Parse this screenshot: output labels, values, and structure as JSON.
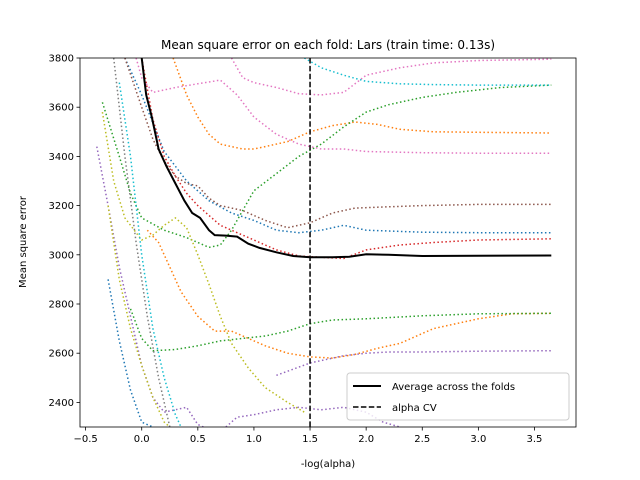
{
  "chart_data": {
    "type": "line",
    "title": "Mean square error on each fold: Lars (train time: 0.13s)",
    "xlabel": "-log(alpha)",
    "ylabel": "Mean square error",
    "xlim": [
      -0.55,
      3.87
    ],
    "ylim": [
      2300,
      3800
    ],
    "xticks": [
      -0.5,
      0.0,
      0.5,
      1.0,
      1.5,
      2.0,
      2.5,
      3.0,
      3.5
    ],
    "xtick_labels": [
      "−0.5",
      "0.0",
      "0.5",
      "1.0",
      "1.5",
      "2.0",
      "2.5",
      "3.0",
      "3.5"
    ],
    "yticks": [
      2400,
      2600,
      2800,
      3000,
      3200,
      3400,
      3600,
      3800
    ],
    "ytick_labels": [
      "2400",
      "2600",
      "2800",
      "3000",
      "3200",
      "3400",
      "3600",
      "3800"
    ],
    "grid": false,
    "legend": {
      "position": "lower-right",
      "entries": [
        {
          "label": "Average across the folds",
          "style": "solid",
          "color": "#000000"
        },
        {
          "label": "alpha CV",
          "style": "dashed",
          "color": "#000000"
        }
      ]
    },
    "alpha_cv": 1.5,
    "average": {
      "color": "#000000",
      "points": [
        [
          0.0,
          3800
        ],
        [
          0.04,
          3650
        ],
        [
          0.09,
          3560
        ],
        [
          0.15,
          3430
        ],
        [
          0.22,
          3360
        ],
        [
          0.3,
          3290
        ],
        [
          0.38,
          3220
        ],
        [
          0.45,
          3170
        ],
        [
          0.52,
          3150
        ],
        [
          0.6,
          3100
        ],
        [
          0.65,
          3080
        ],
        [
          0.75,
          3078
        ],
        [
          0.85,
          3074
        ],
        [
          0.95,
          3045
        ],
        [
          1.05,
          3028
        ],
        [
          1.2,
          3010
        ],
        [
          1.35,
          2995
        ],
        [
          1.5,
          2990
        ],
        [
          1.7,
          2990
        ],
        [
          1.85,
          2992
        ],
        [
          2.0,
          3002
        ],
        [
          2.2,
          3000
        ],
        [
          2.5,
          2995
        ],
        [
          3.0,
          2996
        ],
        [
          3.65,
          2997
        ]
      ]
    },
    "folds": [
      {
        "color": "#1f77b4",
        "points": [
          [
            -0.15,
            3800
          ],
          [
            0.0,
            3650
          ],
          [
            0.2,
            3420
          ],
          [
            0.4,
            3300
          ],
          [
            0.6,
            3220
          ],
          [
            0.8,
            3170
          ],
          [
            1.0,
            3140
          ],
          [
            1.2,
            3100
          ],
          [
            1.4,
            3090
          ],
          [
            1.6,
            3100
          ],
          [
            1.8,
            3120
          ],
          [
            2.0,
            3100
          ],
          [
            2.5,
            3092
          ],
          [
            3.0,
            3090
          ],
          [
            3.65,
            3090
          ]
        ]
      },
      {
        "color": "#1f77b4",
        "points": [
          [
            -0.3,
            2900
          ],
          [
            -0.2,
            2650
          ],
          [
            -0.1,
            2450
          ],
          [
            0.0,
            2320
          ],
          [
            0.1,
            2300
          ]
        ]
      },
      {
        "color": "#ff7f0e",
        "points": [
          [
            0.28,
            3800
          ],
          [
            0.4,
            3650
          ],
          [
            0.5,
            3560
          ],
          [
            0.6,
            3490
          ],
          [
            0.7,
            3450
          ],
          [
            0.8,
            3440
          ],
          [
            0.9,
            3430
          ],
          [
            1.0,
            3430
          ],
          [
            1.1,
            3440
          ],
          [
            1.3,
            3460
          ],
          [
            1.5,
            3500
          ],
          [
            1.7,
            3525
          ],
          [
            1.9,
            3540
          ],
          [
            2.1,
            3530
          ],
          [
            2.3,
            3510
          ],
          [
            2.6,
            3500
          ],
          [
            3.0,
            3498
          ],
          [
            3.65,
            3495
          ]
        ]
      },
      {
        "color": "#ff7f0e",
        "points": [
          [
            0.05,
            3100
          ],
          [
            0.15,
            3050
          ],
          [
            0.25,
            2950
          ],
          [
            0.35,
            2850
          ],
          [
            0.5,
            2750
          ],
          [
            0.65,
            2690
          ],
          [
            0.8,
            2690
          ],
          [
            0.95,
            2660
          ],
          [
            1.1,
            2630
          ],
          [
            1.3,
            2600
          ],
          [
            1.5,
            2585
          ],
          [
            1.7,
            2580
          ],
          [
            1.9,
            2595
          ],
          [
            2.1,
            2620
          ],
          [
            2.3,
            2640
          ],
          [
            2.6,
            2700
          ],
          [
            3.0,
            2740
          ],
          [
            3.3,
            2760
          ],
          [
            3.65,
            2762
          ]
        ]
      },
      {
        "color": "#2ca02c",
        "points": [
          [
            -0.35,
            3620
          ],
          [
            -0.2,
            3400
          ],
          [
            -0.1,
            3250
          ],
          [
            0.0,
            3150
          ],
          [
            0.2,
            3100
          ],
          [
            0.4,
            3070
          ],
          [
            0.6,
            3030
          ],
          [
            0.7,
            3040
          ],
          [
            0.8,
            3100
          ],
          [
            0.9,
            3180
          ],
          [
            1.0,
            3260
          ],
          [
            1.2,
            3330
          ],
          [
            1.4,
            3400
          ],
          [
            1.6,
            3450
          ],
          [
            1.8,
            3520
          ],
          [
            2.0,
            3580
          ],
          [
            2.2,
            3610
          ],
          [
            2.5,
            3640
          ],
          [
            2.8,
            3660
          ],
          [
            3.2,
            3680
          ],
          [
            3.65,
            3690
          ]
        ]
      },
      {
        "color": "#2ca02c",
        "points": [
          [
            -0.1,
            2780
          ],
          [
            0.0,
            2660
          ],
          [
            0.1,
            2610
          ],
          [
            0.3,
            2615
          ],
          [
            0.5,
            2630
          ],
          [
            0.7,
            2650
          ],
          [
            0.9,
            2660
          ],
          [
            1.1,
            2670
          ],
          [
            1.3,
            2690
          ],
          [
            1.5,
            2720
          ],
          [
            1.7,
            2735
          ],
          [
            2.0,
            2740
          ],
          [
            2.5,
            2752
          ],
          [
            3.0,
            2760
          ],
          [
            3.65,
            2762
          ]
        ]
      },
      {
        "color": "#d62728",
        "points": [
          [
            0.0,
            3800
          ],
          [
            0.1,
            3550
          ],
          [
            0.2,
            3400
          ],
          [
            0.3,
            3320
          ],
          [
            0.4,
            3250
          ],
          [
            0.5,
            3200
          ],
          [
            0.6,
            3160
          ],
          [
            0.7,
            3120
          ],
          [
            0.8,
            3100
          ],
          [
            1.0,
            3060
          ],
          [
            1.2,
            3020
          ],
          [
            1.4,
            2995
          ],
          [
            1.6,
            2990
          ],
          [
            1.8,
            2985
          ],
          [
            2.0,
            3020
          ],
          [
            2.3,
            3040
          ],
          [
            2.6,
            3050
          ],
          [
            3.0,
            3060
          ],
          [
            3.65,
            3065
          ]
        ]
      },
      {
        "color": "#9467bd",
        "points": [
          [
            -0.4,
            3440
          ],
          [
            -0.3,
            3200
          ],
          [
            -0.2,
            2950
          ],
          [
            -0.1,
            2750
          ],
          [
            0.0,
            2550
          ],
          [
            0.1,
            2420
          ],
          [
            0.2,
            2360
          ],
          [
            0.4,
            2380
          ],
          [
            0.5,
            2310
          ],
          [
            0.55,
            2300
          ]
        ]
      },
      {
        "color": "#9467bd",
        "points": [
          [
            0.75,
            2300
          ],
          [
            0.85,
            2340
          ],
          [
            1.0,
            2350
          ],
          [
            1.2,
            2370
          ],
          [
            1.4,
            2380
          ],
          [
            1.6,
            2370
          ],
          [
            1.8,
            2380
          ],
          [
            2.0,
            2360
          ],
          [
            2.15,
            2320
          ],
          [
            2.3,
            2300
          ]
        ]
      },
      {
        "color": "#9467bd",
        "points": [
          [
            1.2,
            2510
          ],
          [
            1.5,
            2560
          ],
          [
            1.8,
            2590
          ],
          [
            2.0,
            2600
          ],
          [
            2.2,
            2605
          ],
          [
            2.5,
            2605
          ],
          [
            3.0,
            2608
          ],
          [
            3.65,
            2610
          ]
        ]
      },
      {
        "color": "#8c564b",
        "points": [
          [
            -0.15,
            3800
          ],
          [
            0.0,
            3600
          ],
          [
            0.1,
            3470
          ],
          [
            0.2,
            3380
          ],
          [
            0.3,
            3320
          ],
          [
            0.4,
            3290
          ],
          [
            0.5,
            3280
          ],
          [
            0.6,
            3230
          ],
          [
            0.7,
            3200
          ],
          [
            0.9,
            3180
          ],
          [
            1.1,
            3140
          ],
          [
            1.3,
            3110
          ],
          [
            1.5,
            3130
          ],
          [
            1.7,
            3170
          ],
          [
            1.9,
            3190
          ],
          [
            2.2,
            3195
          ],
          [
            2.5,
            3200
          ],
          [
            3.0,
            3205
          ],
          [
            3.65,
            3205
          ]
        ]
      },
      {
        "color": "#e377c2",
        "points": [
          [
            -0.05,
            3800
          ],
          [
            0.0,
            3720
          ],
          [
            0.1,
            3660
          ],
          [
            0.3,
            3680
          ],
          [
            0.5,
            3695
          ],
          [
            0.7,
            3710
          ],
          [
            0.85,
            3650
          ],
          [
            1.0,
            3560
          ],
          [
            1.2,
            3490
          ],
          [
            1.4,
            3450
          ],
          [
            1.6,
            3430
          ],
          [
            1.8,
            3430
          ],
          [
            2.0,
            3420
          ],
          [
            2.5,
            3415
          ],
          [
            3.0,
            3413
          ],
          [
            3.65,
            3413
          ]
        ]
      },
      {
        "color": "#e377c2",
        "points": [
          [
            0.8,
            3800
          ],
          [
            0.9,
            3720
          ],
          [
            1.0,
            3700
          ],
          [
            1.2,
            3680
          ],
          [
            1.4,
            3655
          ],
          [
            1.6,
            3650
          ],
          [
            1.8,
            3660
          ],
          [
            2.0,
            3730
          ],
          [
            2.3,
            3760
          ],
          [
            2.6,
            3780
          ],
          [
            3.0,
            3790
          ],
          [
            3.65,
            3795
          ]
        ]
      },
      {
        "color": "#bcbd22",
        "points": [
          [
            -0.35,
            3580
          ],
          [
            -0.25,
            3300
          ],
          [
            -0.15,
            3150
          ],
          [
            0.0,
            3060
          ],
          [
            0.1,
            3080
          ],
          [
            0.2,
            3120
          ],
          [
            0.3,
            3150
          ],
          [
            0.4,
            3110
          ],
          [
            0.5,
            3000
          ],
          [
            0.6,
            2880
          ],
          [
            0.7,
            2750
          ],
          [
            0.8,
            2640
          ],
          [
            0.95,
            2540
          ],
          [
            1.1,
            2460
          ],
          [
            1.3,
            2400
          ],
          [
            1.45,
            2360
          ]
        ]
      },
      {
        "color": "#bcbd22",
        "points": [
          [
            -0.3,
            3200
          ],
          [
            -0.2,
            2900
          ],
          [
            -0.1,
            2700
          ],
          [
            0.0,
            2550
          ],
          [
            0.1,
            2420
          ],
          [
            0.2,
            2320
          ],
          [
            0.25,
            2300
          ]
        ]
      },
      {
        "color": "#17becf",
        "points": [
          [
            -0.2,
            3700
          ],
          [
            -0.1,
            3400
          ],
          [
            0.0,
            3000
          ],
          [
            0.1,
            2700
          ],
          [
            0.2,
            2500
          ],
          [
            0.3,
            2350
          ],
          [
            0.35,
            2300
          ]
        ]
      },
      {
        "color": "#17becf",
        "points": [
          [
            1.45,
            3800
          ],
          [
            1.6,
            3760
          ],
          [
            1.8,
            3730
          ],
          [
            2.0,
            3705
          ],
          [
            2.3,
            3695
          ],
          [
            2.6,
            3692
          ],
          [
            3.0,
            3690
          ],
          [
            3.65,
            3690
          ]
        ]
      },
      {
        "color": "#7f7f7f",
        "points": [
          [
            -0.25,
            3800
          ],
          [
            -0.15,
            3400
          ],
          [
            -0.05,
            3050
          ],
          [
            0.05,
            2750
          ],
          [
            0.15,
            2500
          ],
          [
            0.25,
            2300
          ]
        ]
      }
    ]
  }
}
